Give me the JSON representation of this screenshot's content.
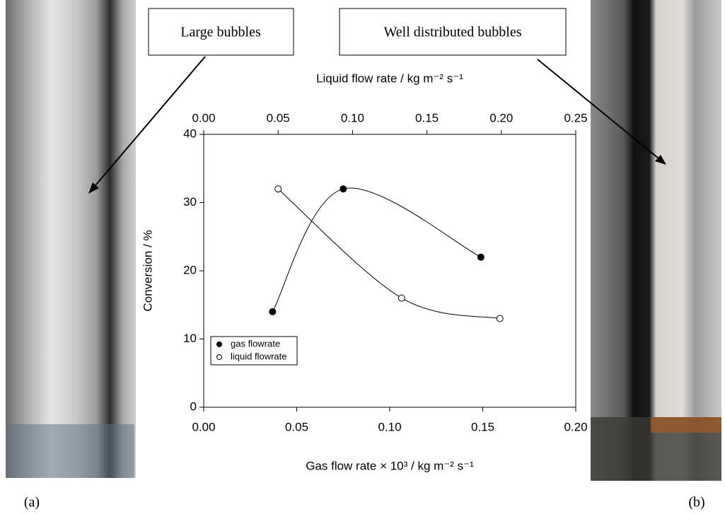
{
  "chart_data": {
    "type": "scatter",
    "xlabel": "Gas flow rate × 10³ / kg m⁻² s⁻¹",
    "x2label": "Liquid flow rate / kg m⁻² s⁻¹",
    "ylabel": "Conversion / %",
    "xlim": [
      0,
      0.2
    ],
    "xticks": [
      {
        "value": 0,
        "label": "0.00"
      },
      {
        "value": 0.05,
        "label": "0.05"
      },
      {
        "value": 0.1,
        "label": "0.10"
      },
      {
        "value": 0.15,
        "label": "0.15"
      },
      {
        "value": 0.2,
        "label": "0.20"
      }
    ],
    "x2lim": [
      0,
      0.25
    ],
    "x2ticks": [
      {
        "value": 0,
        "label": "0.00"
      },
      {
        "value": 0.05,
        "label": "0.05"
      },
      {
        "value": 0.1,
        "label": "0.10"
      },
      {
        "value": 0.15,
        "label": "0.15"
      },
      {
        "value": 0.2,
        "label": "0.20"
      },
      {
        "value": 0.25,
        "label": "0.25"
      }
    ],
    "ylim": [
      0,
      40
    ],
    "yticks": [
      0,
      10,
      20,
      30,
      40
    ],
    "legend": "lower left",
    "series": [
      {
        "name": "gas flowrate",
        "marker": "filled",
        "color": "#000000",
        "x": [
          0.037,
          0.075,
          0.149
        ],
        "values": [
          14,
          32,
          22
        ]
      },
      {
        "name": "liquid flowrate",
        "marker": "open",
        "color": "#000000",
        "axis": "x2",
        "x": [
          0.05,
          0.133,
          0.199
        ],
        "values": [
          32,
          16,
          13
        ]
      }
    ],
    "annotations": [
      "Large bubbles",
      "Well distributed bubbles"
    ],
    "panel_labels": [
      "(a)",
      "(b)"
    ]
  }
}
